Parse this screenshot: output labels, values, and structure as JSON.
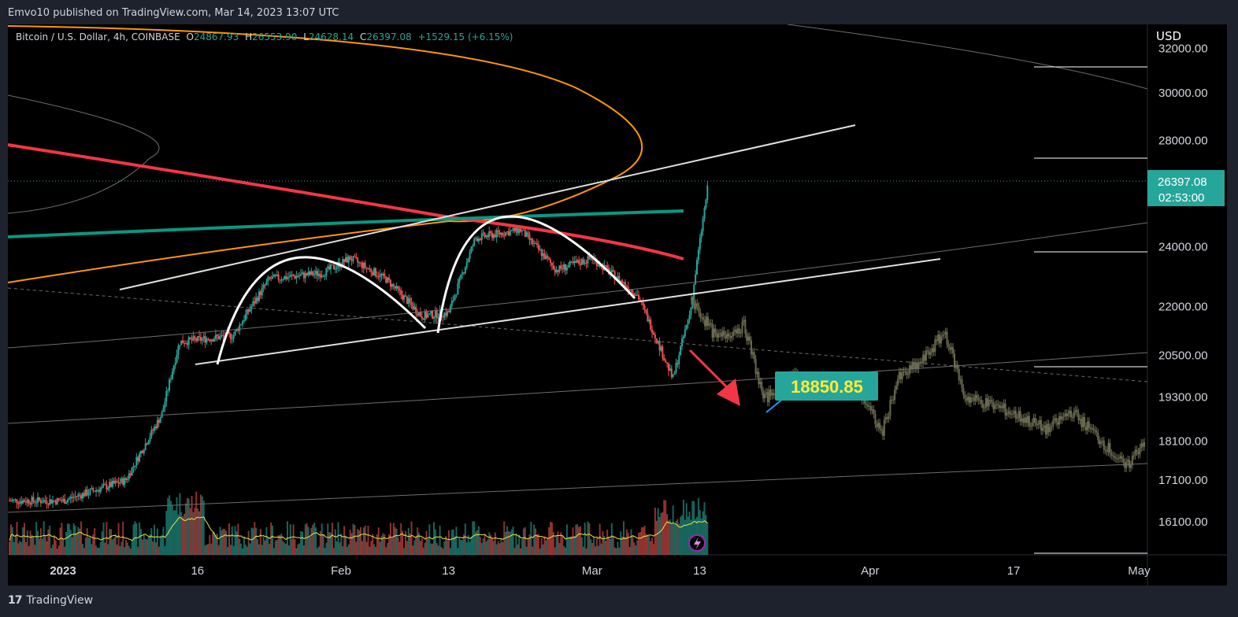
{
  "header": {
    "published": "Emvo10 published on TradingView.com, Mar 14, 2023 13:07 UTC"
  },
  "legend": {
    "symbol": "Bitcoin / U.S. Dollar, 4h, COINBASE",
    "o_label": "O",
    "o_value": "24867.93",
    "h_label": "H",
    "h_value": "26553.90",
    "l_label": "L",
    "l_value": "24628.14",
    "c_label": "C",
    "c_value": "26397.08",
    "change": "+1529.15 (+6.15%)"
  },
  "currency": "USD",
  "price_badge": {
    "price": "26397.08",
    "countdown": "02:53:00"
  },
  "target_label": "18850.85",
  "footer": {
    "brand": "TradingView",
    "logo": "17"
  },
  "colors": {
    "background": "#000000",
    "frame": "#1e222d",
    "up": "#26a69a",
    "down": "#ef5350",
    "ma_red": "#f23645",
    "ma_teal": "#089981",
    "orange": "#ff9800",
    "target_box": "#26a69a",
    "target_text": "#ffeb3b",
    "projection_candles": "#6b6b4e",
    "volume_ma": "#e6e34a"
  },
  "chart_data": {
    "type": "candlestick",
    "timeframe": "4h",
    "y_axis": {
      "ticks": [
        32000.0,
        30000.0,
        28000.0,
        26397.08,
        24000.0,
        22000.0,
        20500.0,
        19300.0,
        18100.0,
        17100.0,
        16100.0
      ],
      "tick_labels": [
        "32000.00",
        "30000.00",
        "28000.00",
        "24000.00",
        "22000.00",
        "20500.00",
        "19300.00",
        "18100.00",
        "17100.00",
        "16100.00"
      ],
      "scale": "log"
    },
    "x_axis": {
      "tick_labels": [
        "2023",
        "16",
        "Feb",
        "13",
        "Mar",
        "13",
        "Apr",
        "17",
        "May"
      ]
    },
    "last": {
      "open": 24867.93,
      "high": 26553.9,
      "low": 24628.14,
      "close": 26397.08
    },
    "price_path_approx": [
      {
        "date": "2023-01-01",
        "close": 16600
      },
      {
        "date": "2023-01-08",
        "close": 17100
      },
      {
        "date": "2023-01-12",
        "close": 18800
      },
      {
        "date": "2023-01-14",
        "close": 20900
      },
      {
        "date": "2023-01-20",
        "close": 21100
      },
      {
        "date": "2023-01-24",
        "close": 22900
      },
      {
        "date": "2023-01-30",
        "close": 23100
      },
      {
        "date": "2023-02-02",
        "close": 23600
      },
      {
        "date": "2023-02-06",
        "close": 22900
      },
      {
        "date": "2023-02-10",
        "close": 21700
      },
      {
        "date": "2023-02-13",
        "close": 21800
      },
      {
        "date": "2023-02-16",
        "close": 24300
      },
      {
        "date": "2023-02-21",
        "close": 24600
      },
      {
        "date": "2023-02-25",
        "close": 23200
      },
      {
        "date": "2023-03-01",
        "close": 23600
      },
      {
        "date": "2023-03-06",
        "close": 22400
      },
      {
        "date": "2023-03-10",
        "close": 19800
      },
      {
        "date": "2023-03-12",
        "close": 21900
      },
      {
        "date": "2023-03-14",
        "close": 26397.08
      }
    ],
    "projection_label": "18850.85"
  }
}
